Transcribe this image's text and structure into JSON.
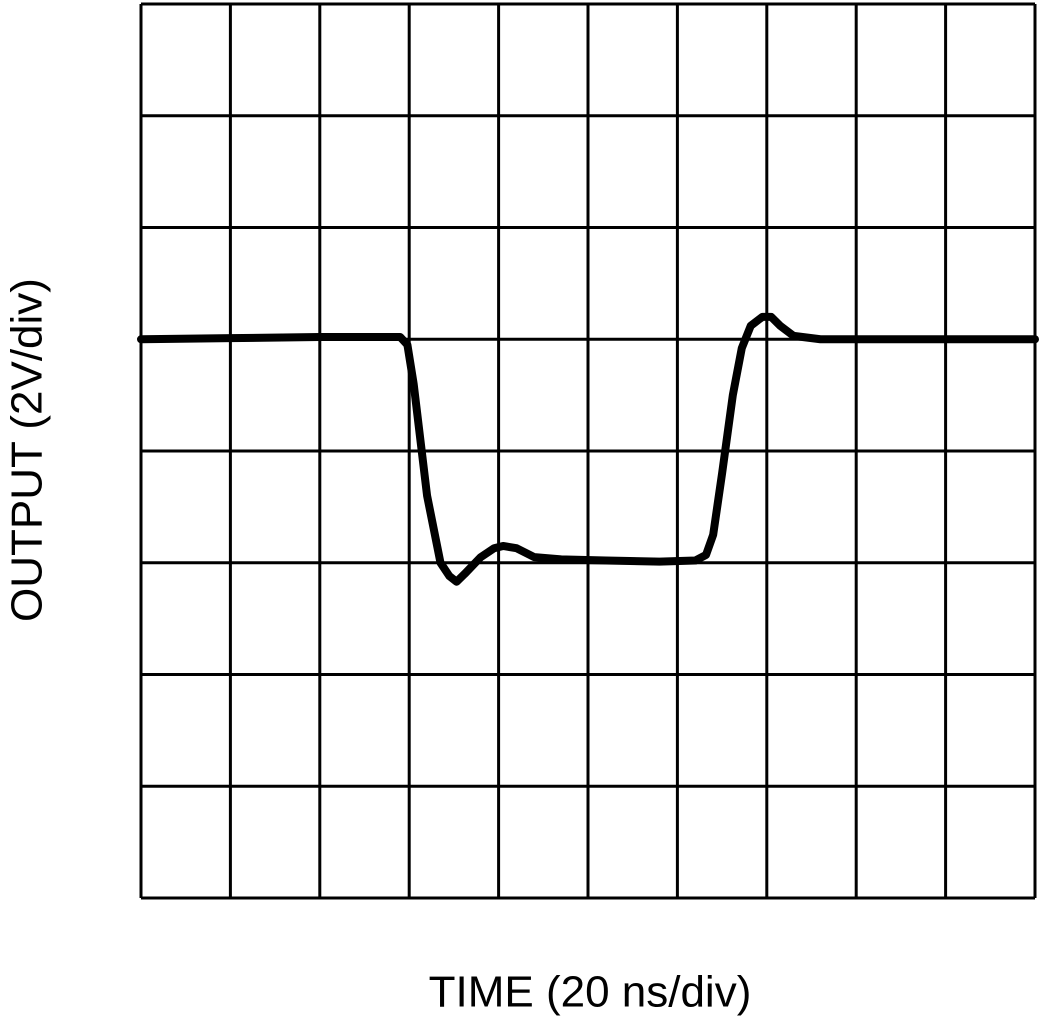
{
  "chart_data": {
    "type": "line",
    "x_label": "TIME (20 ns/div)",
    "y_label": "OUTPUT (2V/div)",
    "xlim": [
      0,
      10
    ],
    "ylim": [
      0,
      8
    ],
    "xticks": [
      0,
      1,
      2,
      3,
      4,
      5,
      6,
      7,
      8,
      9,
      10
    ],
    "yticks": [
      0,
      1,
      2,
      3,
      4,
      5,
      6,
      7,
      8
    ],
    "grid": true,
    "series": [
      {
        "color": "#000000",
        "x": [
          0,
          1,
          2,
          2.9,
          2.98,
          3.05,
          3.2,
          3.35,
          3.45,
          3.53,
          3.62,
          3.8,
          3.95,
          4.05,
          4.2,
          4.4,
          4.7,
          5.2,
          5.8,
          6.2,
          6.32,
          6.4,
          6.5,
          6.62,
          6.72,
          6.82,
          6.95,
          7.05,
          7.15,
          7.3,
          7.6,
          8,
          9,
          10
        ],
        "values": [
          5.0,
          5.01,
          5.02,
          5.02,
          4.95,
          4.6,
          3.6,
          3.0,
          2.88,
          2.83,
          2.9,
          3.05,
          3.13,
          3.15,
          3.13,
          3.05,
          3.03,
          3.02,
          3.01,
          3.02,
          3.07,
          3.25,
          3.8,
          4.5,
          4.92,
          5.12,
          5.2,
          5.2,
          5.12,
          5.03,
          5.0,
          5.0,
          5.0,
          5.0
        ]
      }
    ]
  }
}
